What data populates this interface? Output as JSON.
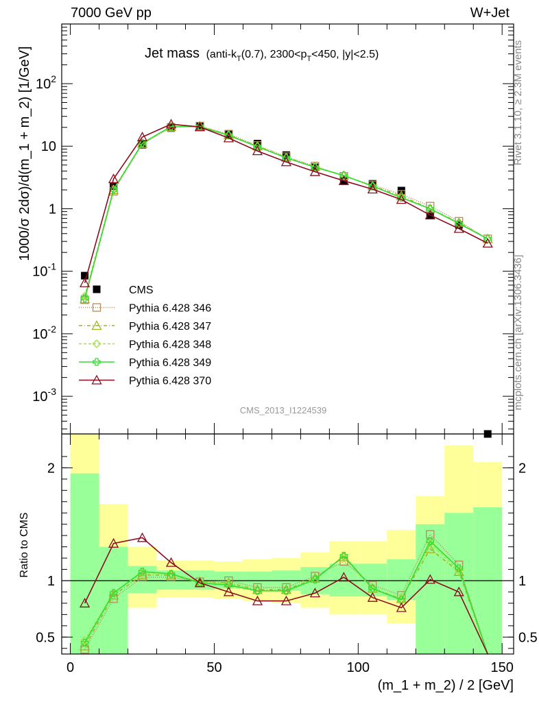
{
  "header": {
    "energy": "7000 GeV pp",
    "process": "W+Jet",
    "title_main": "Jet mass",
    "title_detail": "(anti-k",
    "title_sub_T": "T",
    "title_detail2": "(0.7), 2300<p",
    "title_detail3": "<450, |y|<2.5)",
    "analysis_id": "CMS_2013_I1224539",
    "side_rivet": "Rivet 3.1.10, ≥ 2.3M events",
    "side_mcplots": "mcplots.cern.ch [arXiv:1306.3436]"
  },
  "chart_data": [
    {
      "type": "line",
      "panel": "main",
      "ylabel": "1000/σ 2dσ)/d(m_1 + m_2) [1/GeV]",
      "yscale": "log",
      "ylim": [
        0.00025,
        900
      ],
      "xlim": [
        -3,
        154
      ],
      "yticks": [
        {
          "v": 0.001,
          "m": "10",
          "e": "-3"
        },
        {
          "v": 0.01,
          "m": "10",
          "e": "-2"
        },
        {
          "v": 0.1,
          "m": "10",
          "e": "-1"
        },
        {
          "v": 1,
          "m": "1",
          "e": ""
        },
        {
          "v": 10,
          "m": "10",
          "e": ""
        },
        {
          "v": 100,
          "m": "10",
          "e": "2"
        }
      ],
      "x": [
        5,
        15,
        25,
        35,
        45,
        55,
        65,
        75,
        85,
        95,
        105,
        115,
        125,
        135,
        145
      ],
      "series": [
        {
          "name": "CMS",
          "color": "#000000",
          "marker": "square-filled",
          "dash": "none",
          "values": [
            0.085,
            2.3,
            10.5,
            19.5,
            21,
            15.5,
            11,
            7.2,
            4.6,
            2.8,
            2.5,
            1.95,
            0.78,
            0.55,
            0.00025
          ]
        },
        {
          "name": "Pythia 6.428 346",
          "color": "#b58b5a",
          "marker": "square-open",
          "dash": "1,2",
          "values": [
            0.035,
            1.9,
            10.8,
            20,
            21,
            15.6,
            10.3,
            6.8,
            4.8,
            3.3,
            2.4,
            1.7,
            1.1,
            0.63,
            0.33
          ]
        },
        {
          "name": "Pythia 6.428 347",
          "color": "#a0b41e",
          "marker": "triangle-open",
          "dash": "5,3,1,3",
          "values": [
            0.036,
            2.0,
            11.0,
            20.5,
            20.8,
            15.2,
            10.0,
            6.6,
            4.7,
            3.4,
            2.3,
            1.6,
            1.0,
            0.6,
            0.33
          ]
        },
        {
          "name": "Pythia 6.428 348",
          "color": "#a6e23c",
          "marker": "diamond-open",
          "dash": "4,3",
          "values": [
            0.04,
            2.05,
            11.2,
            20.6,
            20.7,
            15.0,
            9.9,
            6.5,
            4.6,
            3.4,
            2.3,
            1.5,
            1.0,
            0.58,
            0.33
          ]
        },
        {
          "name": "Pythia 6.428 349",
          "color": "#33dd33",
          "marker": "cross",
          "dash": "none",
          "values": [
            0.037,
            2.0,
            11.2,
            20.6,
            20.5,
            14.9,
            9.8,
            6.5,
            4.6,
            3.4,
            2.3,
            1.5,
            1.0,
            0.58,
            0.33
          ]
        },
        {
          "name": "Pythia 6.428 370",
          "color": "#8b0a1e",
          "marker": "triangle-open",
          "dash": "none",
          "values": [
            0.065,
            3.0,
            14,
            22.5,
            20.3,
            13.5,
            8.4,
            5.6,
            3.9,
            2.8,
            2.05,
            1.4,
            0.79,
            0.48,
            0.28
          ]
        }
      ]
    },
    {
      "type": "line",
      "panel": "ratio",
      "xlabel": "(m_1 + m_2) / 2 [GeV]",
      "ylabel": "Ratio to CMS",
      "ylim": [
        0.35,
        2.3
      ],
      "xlim": [
        -3,
        154
      ],
      "xticks": [
        0,
        50,
        100,
        150
      ],
      "yticks": [
        0.5,
        1,
        2
      ],
      "bands": {
        "edges": [
          0,
          10,
          20,
          30,
          40,
          50,
          60,
          70,
          80,
          90,
          100,
          110,
          120,
          130,
          140,
          150
        ],
        "inner": [
          [
            0.35,
            1.95
          ],
          [
            0.35,
            1.3
          ],
          [
            0.89,
            1.13
          ],
          [
            0.92,
            1.09
          ],
          [
            0.92,
            1.09
          ],
          [
            0.93,
            1.08
          ],
          [
            0.92,
            1.08
          ],
          [
            0.91,
            1.09
          ],
          [
            0.88,
            1.12
          ],
          [
            0.86,
            1.15
          ],
          [
            0.86,
            1.15
          ],
          [
            0.83,
            1.19
          ],
          [
            0.35,
            1.5
          ],
          [
            0.35,
            1.6
          ],
          [
            0.35,
            1.65
          ]
        ],
        "outer": [
          [
            0.35,
            2.3
          ],
          [
            0.72,
            1.68
          ],
          [
            0.76,
            1.3
          ],
          [
            0.85,
            1.18
          ],
          [
            0.85,
            1.18
          ],
          [
            0.84,
            1.17
          ],
          [
            0.82,
            1.19
          ],
          [
            0.8,
            1.2
          ],
          [
            0.76,
            1.25
          ],
          [
            0.7,
            1.35
          ],
          [
            0.7,
            1.35
          ],
          [
            0.62,
            1.45
          ],
          [
            0.35,
            1.75
          ],
          [
            0.35,
            2.2
          ],
          [
            0.46,
            2.05
          ]
        ]
      },
      "series": [
        {
          "name": "Pythia 6.428 346",
          "values": [
            0.39,
            0.84,
            1.03,
            1.03,
            0.99,
            1.0,
            0.94,
            0.94,
            1.04,
            1.17,
            0.96,
            0.87,
            1.41,
            1.14,
            0.2
          ]
        },
        {
          "name": "Pythia 6.428 347",
          "values": [
            0.42,
            0.87,
            1.05,
            1.05,
            0.99,
            0.98,
            0.92,
            0.92,
            1.02,
            1.21,
            0.93,
            0.84,
            1.28,
            1.08,
            0.2
          ]
        },
        {
          "name": "Pythia 6.428 348",
          "values": [
            0.47,
            0.89,
            1.07,
            1.06,
            0.99,
            0.97,
            0.91,
            0.91,
            1.01,
            1.22,
            0.92,
            0.84,
            1.33,
            1.09,
            0.2
          ]
        },
        {
          "name": "Pythia 6.428 349",
          "values": [
            0.45,
            0.89,
            1.08,
            1.06,
            0.98,
            0.96,
            0.91,
            0.91,
            1.01,
            1.22,
            0.93,
            0.83,
            1.35,
            1.11,
            0.2
          ]
        },
        {
          "name": "Pythia 6.428 370",
          "values": [
            0.8,
            1.33,
            1.38,
            1.16,
            0.98,
            0.9,
            0.82,
            0.82,
            0.89,
            1.03,
            0.85,
            0.76,
            1.01,
            0.9,
            0.2
          ]
        }
      ]
    }
  ]
}
